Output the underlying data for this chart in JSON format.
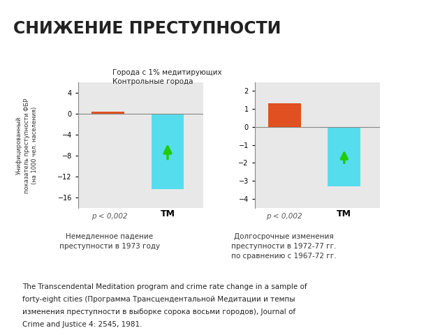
{
  "title": "СНИЖЕНИЕ ПРЕСТУПНОСТИ",
  "title_color": "#222222",
  "bg_color": "#e8e8e8",
  "plot_bg": "#e8e8e8",
  "header_teal": "#3bbdcc",
  "header_red": "#cc2222",
  "legend_label1": "Города с 1% медитирующих",
  "legend_label2": "Контрольные города",
  "legend_color1": "#66ddee",
  "legend_color2": "#e05020",
  "ylabel": "Унифицированный\nпоказатель преступности ФБР\n(на 1000 чел. населения)",
  "chart1": {
    "control_value": 0.4,
    "tm_value": -14.5,
    "ylim": [
      -18,
      6
    ],
    "yticks": [
      4,
      0,
      -4,
      -8,
      -12,
      -16
    ],
    "tm_label": "ТМ",
    "pvalue": "p < 0,002",
    "subtitle1": "Немедленное падение",
    "subtitle2": "преступности в 1973 году"
  },
  "chart2": {
    "control_value": 1.3,
    "tm_value": -3.3,
    "ylim": [
      -4.5,
      2.5
    ],
    "yticks": [
      2,
      1,
      0,
      -1,
      -2,
      -3,
      -4
    ],
    "tm_label": "ТМ",
    "pvalue": "p < 0,002",
    "subtitle1": "Долгосрочные изменения",
    "subtitle2": "преступности в 1972-77 гг.",
    "subtitle3": "по сравнению с 1967-72 гг."
  },
  "bar_blue": "#55ddee",
  "bar_red": "#e05020",
  "arrow_color": "#22cc00",
  "footnote_line1": "The Transcendental Meditation program and crime rate change in a sample of",
  "footnote_line2": "forty-eight cities (Программа Трансцендентальной Медитации и темпы",
  "footnote_line3": "изменения преступности в выборке сорока восьми городов), Journal of",
  "footnote_line4": "Crime and Justice 4: 2545, 1981."
}
